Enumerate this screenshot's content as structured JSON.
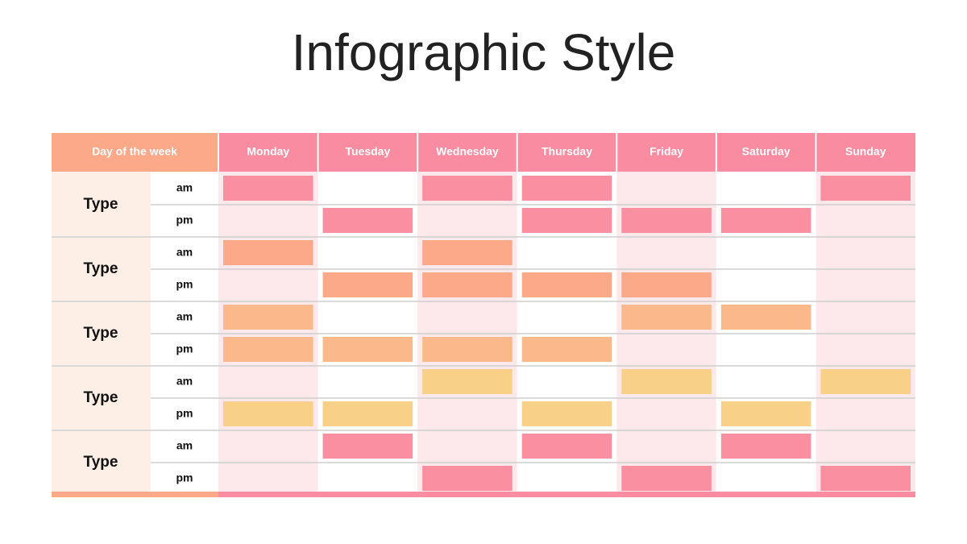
{
  "title": "Infographic Style",
  "table": {
    "header_label": "Day of the week",
    "days": [
      "Monday",
      "Tuesday",
      "Wednesday",
      "Thursday",
      "Friday",
      "Saturday",
      "Sunday"
    ],
    "groups": [
      {
        "label": "Type",
        "color": "#f98fa0",
        "rows": [
          {
            "label": "am",
            "filled": [
              true,
              false,
              true,
              true,
              false,
              false,
              true
            ]
          },
          {
            "label": "pm",
            "filled": [
              false,
              true,
              false,
              true,
              true,
              true,
              false
            ]
          }
        ]
      },
      {
        "label": "Type",
        "color": "#fca98a",
        "rows": [
          {
            "label": "am",
            "filled": [
              true,
              false,
              true,
              false,
              false,
              false,
              false
            ]
          },
          {
            "label": "pm",
            "filled": [
              false,
              true,
              true,
              true,
              true,
              false,
              false
            ]
          }
        ]
      },
      {
        "label": "Type",
        "color": "#fbb88a",
        "rows": [
          {
            "label": "am",
            "filled": [
              true,
              false,
              false,
              false,
              true,
              true,
              false
            ]
          },
          {
            "label": "pm",
            "filled": [
              true,
              true,
              true,
              true,
              false,
              false,
              false
            ]
          }
        ]
      },
      {
        "label": "Type",
        "color": "#f9d088",
        "rows": [
          {
            "label": "am",
            "filled": [
              false,
              false,
              true,
              false,
              true,
              false,
              true
            ]
          },
          {
            "label": "pm",
            "filled": [
              true,
              true,
              false,
              true,
              false,
              true,
              false
            ]
          }
        ]
      },
      {
        "label": "Type",
        "color": "#f98fa0",
        "rows": [
          {
            "label": "am",
            "filled": [
              false,
              true,
              false,
              true,
              false,
              true,
              false
            ]
          },
          {
            "label": "pm",
            "filled": [
              false,
              false,
              true,
              false,
              true,
              false,
              true
            ]
          }
        ]
      }
    ]
  }
}
